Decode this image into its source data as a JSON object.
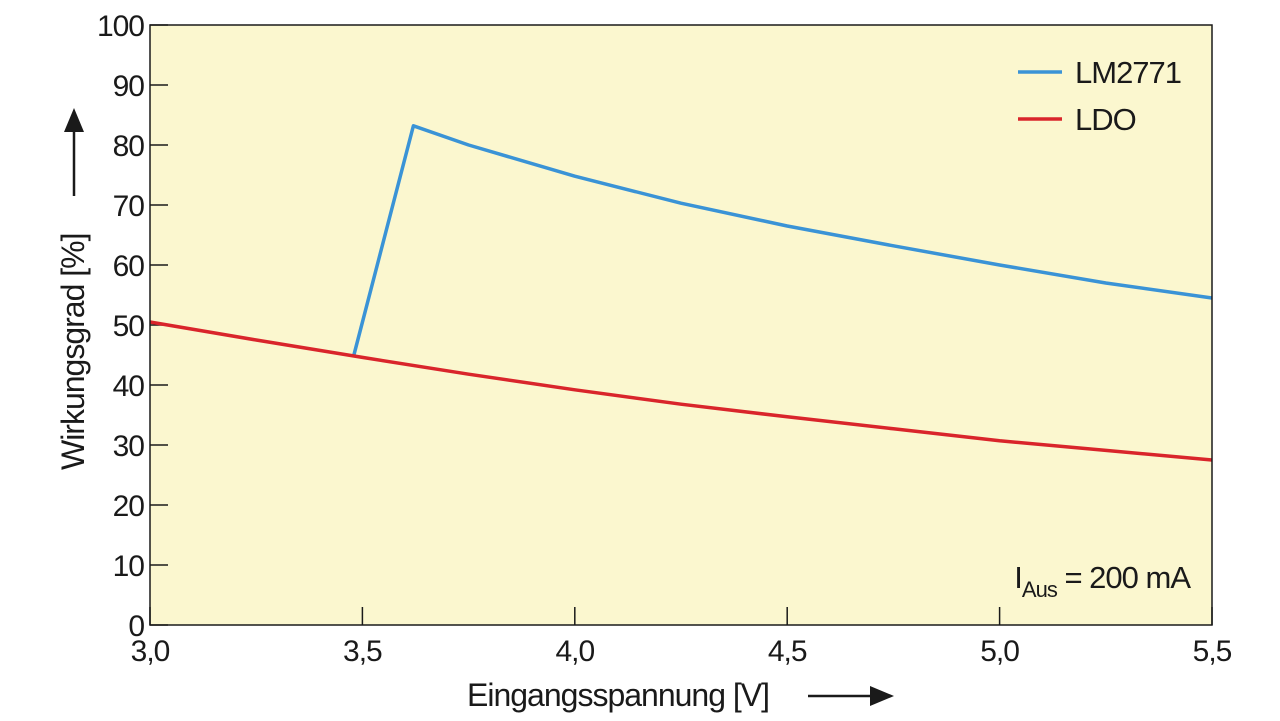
{
  "chart_data": {
    "type": "line",
    "xlabel": "Eingangsspannung [V]",
    "ylabel": "Wirkungsgrad [%]",
    "xlim": [
      3.0,
      5.5
    ],
    "ylim": [
      0,
      100
    ],
    "x_ticks": [
      "3,0",
      "3,5",
      "4,0",
      "4,5",
      "5,0",
      "5,5"
    ],
    "y_ticks": [
      "0",
      "10",
      "20",
      "30",
      "40",
      "50",
      "60",
      "70",
      "80",
      "90",
      "100"
    ],
    "legend_position": "top-right",
    "background_color": "#fbf7cf",
    "series": [
      {
        "name": "LM2771",
        "color": "#3a93d6",
        "x": [
          3.48,
          3.62,
          3.75,
          4.0,
          4.25,
          4.5,
          4.75,
          5.0,
          5.25,
          5.5
        ],
        "y": [
          45,
          83.2,
          80,
          74.8,
          70.3,
          66.5,
          63.2,
          60,
          57,
          54.5
        ]
      },
      {
        "name": "LDO",
        "color": "#d9252b",
        "x": [
          3.0,
          3.25,
          3.5,
          3.75,
          4.0,
          4.25,
          4.5,
          4.75,
          5.0,
          5.25,
          5.5
        ],
        "y": [
          50.5,
          47.5,
          44.6,
          41.8,
          39.2,
          36.8,
          34.7,
          32.7,
          30.7,
          29.1,
          27.5
        ]
      }
    ],
    "annotation": {
      "prefix": "I",
      "subscript": "Aus",
      "suffix": " = 200 mA",
      "position": "bottom-right"
    }
  }
}
